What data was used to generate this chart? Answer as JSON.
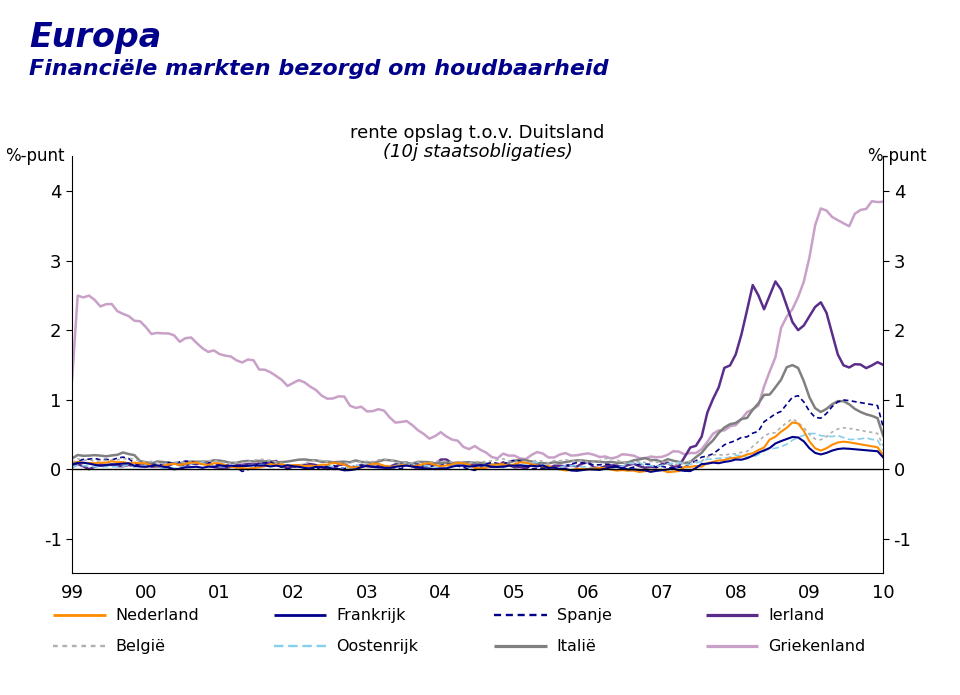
{
  "title_line1": "Europa",
  "title_line2": "Financiële markten bezorgd om houdbaarheid",
  "ylabel_left": "%-punt",
  "ylabel_right": "%-punt",
  "subtitle_line1": "rente opslag t.o.v. Duitsland",
  "subtitle_line2": "(10j staatsobligaties)",
  "ylim": [
    -1.5,
    4.5
  ],
  "yticks": [
    -1,
    0,
    1,
    2,
    3,
    4
  ],
  "xtick_labels": [
    "99",
    "00",
    "01",
    "02",
    "03",
    "04",
    "05",
    "06",
    "07",
    "08",
    "09",
    "10"
  ],
  "title_color": "#00008B",
  "background_color": "#FFFFFF",
  "series": {
    "Nederland": {
      "color": "#FF8C00",
      "lw": 1.5,
      "ls": "-",
      "dashes": null
    },
    "Frankrijk": {
      "color": "#00008B",
      "lw": 1.5,
      "ls": "-",
      "dashes": null
    },
    "Spanje": {
      "color": "#00008B",
      "lw": 1.2,
      "ls": "--",
      "dashes": [
        3,
        2
      ]
    },
    "Ierland": {
      "color": "#5B2D8B",
      "lw": 1.8,
      "ls": "-",
      "dashes": null
    },
    "België": {
      "color": "#B0B0B0",
      "lw": 1.2,
      "ls": "--",
      "dashes": [
        2,
        2
      ]
    },
    "Oostenrijk": {
      "color": "#87CEEB",
      "lw": 1.2,
      "ls": "--",
      "dashes": [
        4,
        2
      ]
    },
    "Italië": {
      "color": "#808080",
      "lw": 1.8,
      "ls": "-",
      "dashes": null
    },
    "Griekenland": {
      "color": "#C8A0C8",
      "lw": 1.8,
      "ls": "-",
      "dashes": null
    }
  }
}
